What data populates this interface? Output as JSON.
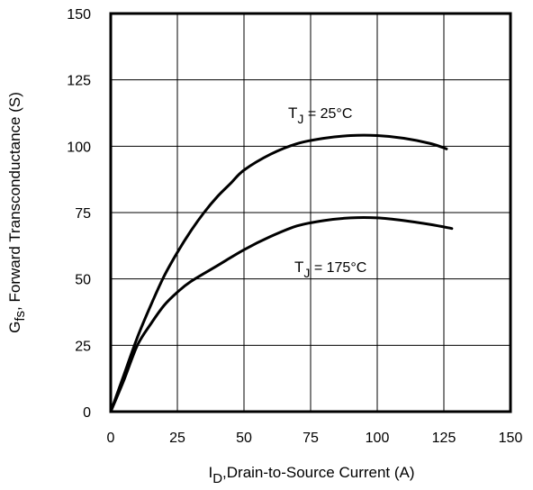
{
  "chart_data": {
    "type": "line",
    "xlabel_main": "I",
    "xlabel_sub": "D",
    "xlabel_rest": ",Drain-to-Source Current (A)",
    "ylabel_main": "G",
    "ylabel_sub": "fs",
    "ylabel_rest": ", Forward Transconductance (S)",
    "xlim": [
      0,
      150
    ],
    "ylim": [
      0,
      150
    ],
    "xticks": [
      "0",
      "25",
      "50",
      "75",
      "100",
      "125",
      "150"
    ],
    "yticks": [
      "0",
      "25",
      "50",
      "75",
      "100",
      "125",
      "150"
    ],
    "grid": true,
    "series": [
      {
        "label_main": "T",
        "label_sub": "J",
        "label_rest": " = 25°C",
        "x": [
          0,
          5,
          10,
          15,
          20,
          25,
          30,
          35,
          40,
          45,
          50,
          60,
          70,
          80,
          90,
          100,
          110,
          120,
          126
        ],
        "y": [
          0,
          14,
          28,
          40,
          51,
          60,
          68,
          75,
          81,
          86,
          91,
          97,
          101,
          103,
          104,
          104,
          103,
          101,
          99
        ]
      },
      {
        "label_main": "T",
        "label_sub": "J",
        "label_rest": " = 175°C",
        "x": [
          0,
          5,
          10,
          15,
          20,
          25,
          30,
          40,
          50,
          60,
          70,
          80,
          90,
          100,
          110,
          120,
          128
        ],
        "y": [
          0,
          12,
          25,
          33,
          40,
          45,
          49,
          55,
          61,
          66,
          70,
          72,
          73,
          73,
          72,
          70.5,
          69
        ]
      }
    ]
  }
}
